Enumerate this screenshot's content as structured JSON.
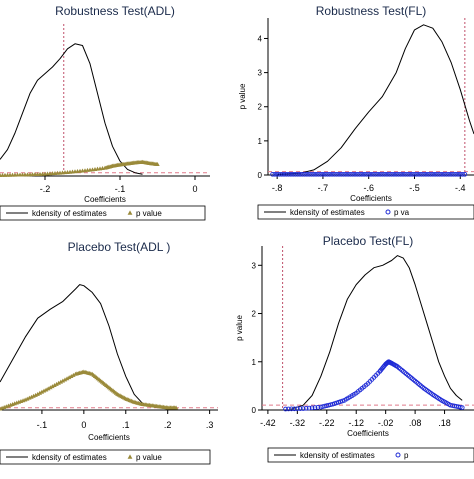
{
  "figure": {
    "background": "#ffffff"
  },
  "chart_data": [
    {
      "type": "line",
      "id": "p1",
      "title": "Robustness Test(ADL)",
      "xlabel": "Coefficients",
      "ylabel": "",
      "xlim": [
        -0.26,
        0.02
      ],
      "ylim": [
        0,
        4.6
      ],
      "x_ticks": [
        -0.2,
        -0.1,
        0
      ],
      "x_tick_labels": [
        "-.2",
        "-.1",
        "0"
      ],
      "y_ticks": [],
      "y_tick_labels": [],
      "vline_x": -0.175,
      "hline_y": 0.1,
      "series": [
        {
          "name": "kdensity of estimates",
          "color": "#000000",
          "points": [
            [
              -0.26,
              0.5
            ],
            [
              -0.25,
              0.8
            ],
            [
              -0.24,
              1.3
            ],
            [
              -0.23,
              1.9
            ],
            [
              -0.22,
              2.5
            ],
            [
              -0.21,
              2.9
            ],
            [
              -0.2,
              3.1
            ],
            [
              -0.19,
              3.3
            ],
            [
              -0.18,
              3.55
            ],
            [
              -0.17,
              3.85
            ],
            [
              -0.16,
              4.0
            ],
            [
              -0.15,
              3.95
            ],
            [
              -0.14,
              3.4
            ],
            [
              -0.13,
              2.5
            ],
            [
              -0.12,
              1.6
            ],
            [
              -0.11,
              0.9
            ],
            [
              -0.1,
              0.45
            ],
            [
              -0.09,
              0.2
            ],
            [
              -0.08,
              0.1
            ],
            [
              -0.07,
              0.05
            ]
          ]
        },
        {
          "name": "p value",
          "color": "#9a8a3a",
          "marker": "triangle",
          "points": [
            [
              -0.26,
              0.02
            ],
            [
              -0.24,
              0.03
            ],
            [
              -0.22,
              0.04
            ],
            [
              -0.2,
              0.06
            ],
            [
              -0.18,
              0.09
            ],
            [
              -0.16,
              0.13
            ],
            [
              -0.14,
              0.18
            ],
            [
              -0.12,
              0.24
            ],
            [
              -0.11,
              0.3
            ],
            [
              -0.1,
              0.34
            ],
            [
              -0.09,
              0.37
            ],
            [
              -0.08,
              0.4
            ],
            [
              -0.07,
              0.42
            ],
            [
              -0.06,
              0.38
            ],
            [
              -0.05,
              0.35
            ]
          ]
        }
      ],
      "legend": {
        "position": "bottom",
        "labels": [
          "kdensity of estimates",
          "p value"
        ]
      }
    },
    {
      "type": "line",
      "id": "p2",
      "title": "Robustness Test(FL)",
      "xlabel": "Coefficients",
      "ylabel": "p value",
      "xlim": [
        -0.82,
        -0.37
      ],
      "ylim": [
        0,
        4.6
      ],
      "x_ticks": [
        -0.8,
        -0.7,
        -0.6,
        -0.5,
        -0.4
      ],
      "x_tick_labels": [
        "-.8",
        "-.7",
        "-.6",
        "-.5",
        "-.4"
      ],
      "y_ticks": [
        0,
        1,
        2,
        3,
        4
      ],
      "y_tick_labels": [
        "0",
        "1",
        "2",
        "3",
        "4"
      ],
      "vline_x": -0.39,
      "hline_y": 0.1,
      "series": [
        {
          "name": "kdensity of estimates",
          "color": "#000000",
          "points": [
            [
              -0.8,
              0.02
            ],
            [
              -0.75,
              0.05
            ],
            [
              -0.72,
              0.15
            ],
            [
              -0.69,
              0.4
            ],
            [
              -0.66,
              0.8
            ],
            [
              -0.63,
              1.35
            ],
            [
              -0.6,
              1.85
            ],
            [
              -0.57,
              2.3
            ],
            [
              -0.54,
              3.0
            ],
            [
              -0.52,
              3.7
            ],
            [
              -0.5,
              4.25
            ],
            [
              -0.48,
              4.4
            ],
            [
              -0.46,
              4.3
            ],
            [
              -0.44,
              3.9
            ],
            [
              -0.42,
              3.3
            ],
            [
              -0.4,
              2.5
            ],
            [
              -0.38,
              1.6
            ],
            [
              -0.37,
              1.2
            ]
          ]
        },
        {
          "name": "p value",
          "color": "#1f2bd6",
          "marker": "circle",
          "points": [
            [
              -0.81,
              0.02
            ],
            [
              -0.78,
              0.02
            ],
            [
              -0.75,
              0.02
            ],
            [
              -0.72,
              0.02
            ],
            [
              -0.69,
              0.02
            ],
            [
              -0.66,
              0.02
            ],
            [
              -0.63,
              0.02
            ],
            [
              -0.6,
              0.02
            ],
            [
              -0.57,
              0.02
            ],
            [
              -0.54,
              0.02
            ],
            [
              -0.51,
              0.02
            ],
            [
              -0.48,
              0.02
            ],
            [
              -0.45,
              0.02
            ],
            [
              -0.42,
              0.02
            ],
            [
              -0.39,
              0.02
            ]
          ]
        }
      ],
      "legend": {
        "position": "bottom",
        "labels": [
          "kdensity of estimates",
          "p va"
        ]
      }
    },
    {
      "type": "line",
      "id": "p3",
      "title": "Placebo Test(ADL )",
      "xlabel": "Coefficients",
      "ylabel": "",
      "xlim": [
        -0.2,
        0.32
      ],
      "ylim": [
        0,
        1.25
      ],
      "x_ticks": [
        -0.1,
        0,
        0.1,
        0.2,
        0.3
      ],
      "x_tick_labels": [
        "-.1",
        "0",
        ".1",
        ".2",
        ".3"
      ],
      "y_ticks": [],
      "y_tick_labels": [],
      "vline_x": null,
      "hline_y": 0.02,
      "series": [
        {
          "name": "kdensity of estimates",
          "color": "#000000",
          "points": [
            [
              -0.2,
              0.25
            ],
            [
              -0.17,
              0.45
            ],
            [
              -0.14,
              0.65
            ],
            [
              -0.11,
              0.82
            ],
            [
              -0.08,
              0.9
            ],
            [
              -0.05,
              0.97
            ],
            [
              -0.02,
              1.08
            ],
            [
              -0.01,
              1.12
            ],
            [
              0,
              1.11
            ],
            [
              0.02,
              1.05
            ],
            [
              0.04,
              0.95
            ],
            [
              0.06,
              0.75
            ],
            [
              0.08,
              0.5
            ],
            [
              0.1,
              0.3
            ],
            [
              0.12,
              0.14
            ],
            [
              0.14,
              0.06
            ],
            [
              0.16,
              0.03
            ],
            [
              0.18,
              0.02
            ],
            [
              0.2,
              0.01
            ]
          ]
        },
        {
          "name": "p value",
          "color": "#9a8a3a",
          "marker": "triangle",
          "points": [
            [
              -0.2,
              0.01
            ],
            [
              -0.17,
              0.05
            ],
            [
              -0.14,
              0.09
            ],
            [
              -0.11,
              0.14
            ],
            [
              -0.08,
              0.2
            ],
            [
              -0.05,
              0.26
            ],
            [
              -0.02,
              0.32
            ],
            [
              0,
              0.34
            ],
            [
              0.02,
              0.32
            ],
            [
              0.04,
              0.26
            ],
            [
              0.06,
              0.2
            ],
            [
              0.08,
              0.14
            ],
            [
              0.1,
              0.1
            ],
            [
              0.12,
              0.07
            ],
            [
              0.14,
              0.05
            ],
            [
              0.16,
              0.04
            ],
            [
              0.18,
              0.03
            ],
            [
              0.2,
              0.02
            ],
            [
              0.22,
              0.02
            ]
          ]
        }
      ],
      "legend": {
        "position": "bottom",
        "labels": [
          "kdensity of estimates",
          "p value"
        ]
      }
    },
    {
      "type": "line",
      "id": "p4",
      "title": "Placebo Test(FL)",
      "xlabel": "Coefficients",
      "ylabel": "p value",
      "xlim": [
        -0.44,
        0.28
      ],
      "ylim": [
        0,
        3.4
      ],
      "x_ticks": [
        -0.42,
        -0.32,
        -0.22,
        -0.12,
        -0.02,
        0.08,
        0.18
      ],
      "x_tick_labels": [
        "-.42",
        "-.32",
        "-.22",
        "-.12",
        "-.02",
        ".08",
        ".18"
      ],
      "y_ticks": [
        0,
        1,
        2,
        3
      ],
      "y_tick_labels": [
        "0",
        "1",
        "2",
        "3"
      ],
      "vline_x": -0.37,
      "hline_y": 0.1,
      "series": [
        {
          "name": "kdensity of estimates",
          "color": "#000000",
          "points": [
            [
              -0.34,
              0.02
            ],
            [
              -0.3,
              0.1
            ],
            [
              -0.27,
              0.3
            ],
            [
              -0.24,
              0.7
            ],
            [
              -0.21,
              1.2
            ],
            [
              -0.18,
              1.8
            ],
            [
              -0.15,
              2.3
            ],
            [
              -0.12,
              2.6
            ],
            [
              -0.09,
              2.8
            ],
            [
              -0.06,
              2.95
            ],
            [
              -0.03,
              3.0
            ],
            [
              0,
              3.1
            ],
            [
              0.02,
              3.2
            ],
            [
              0.04,
              3.15
            ],
            [
              0.06,
              2.95
            ],
            [
              0.08,
              2.6
            ],
            [
              0.1,
              2.2
            ],
            [
              0.12,
              1.8
            ],
            [
              0.14,
              1.4
            ],
            [
              0.16,
              1.0
            ],
            [
              0.18,
              0.7
            ],
            [
              0.2,
              0.45
            ],
            [
              0.22,
              0.3
            ],
            [
              0.24,
              0.2
            ]
          ]
        },
        {
          "name": "p value",
          "color": "#1f2bd6",
          "marker": "circle",
          "points": [
            [
              -0.36,
              0.02
            ],
            [
              -0.3,
              0.03
            ],
            [
              -0.24,
              0.06
            ],
            [
              -0.2,
              0.12
            ],
            [
              -0.16,
              0.2
            ],
            [
              -0.12,
              0.35
            ],
            [
              -0.08,
              0.55
            ],
            [
              -0.04,
              0.8
            ],
            [
              -0.02,
              0.95
            ],
            [
              -0.01,
              1.0
            ],
            [
              0,
              0.97
            ],
            [
              0.02,
              0.9
            ],
            [
              0.05,
              0.75
            ],
            [
              0.08,
              0.6
            ],
            [
              0.11,
              0.45
            ],
            [
              0.14,
              0.32
            ],
            [
              0.17,
              0.2
            ],
            [
              0.2,
              0.1
            ],
            [
              0.24,
              0.05
            ]
          ]
        }
      ],
      "legend": {
        "position": "bottom",
        "labels": [
          "kdensity of estimates",
          "p"
        ]
      }
    }
  ]
}
